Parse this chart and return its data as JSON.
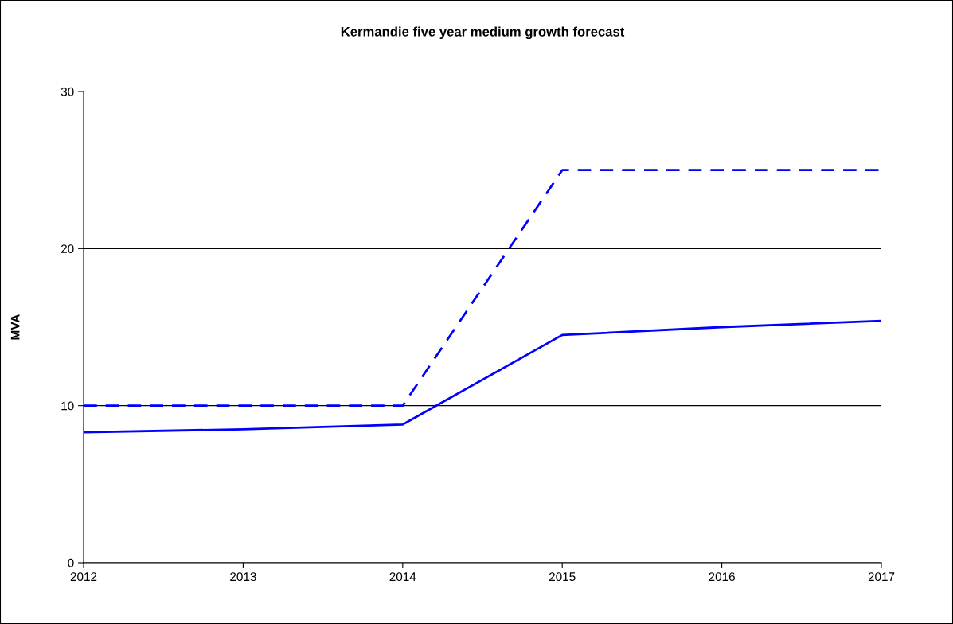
{
  "chart_data": {
    "type": "line",
    "title": "Kermandie five year medium growth forecast",
    "ylabel": "MVA",
    "x": [
      2012,
      2013,
      2014,
      2015,
      2016,
      2017
    ],
    "series": [
      {
        "color": "#0000ff",
        "line_style": "dashed",
        "values": [
          10,
          10,
          10,
          25,
          25,
          25
        ]
      },
      {
        "color": "#0000ff",
        "line_style": "solid",
        "values": [
          8.3,
          8.5,
          8.8,
          14.5,
          15.0,
          15.4
        ]
      }
    ],
    "xlim": [
      2012,
      2017
    ],
    "xticks": [
      2012,
      2013,
      2014,
      2015,
      2016,
      2017
    ],
    "ylim": [
      0,
      30
    ],
    "yticks": [
      0,
      10,
      20,
      30
    ],
    "grid": "y",
    "marker": "none"
  }
}
